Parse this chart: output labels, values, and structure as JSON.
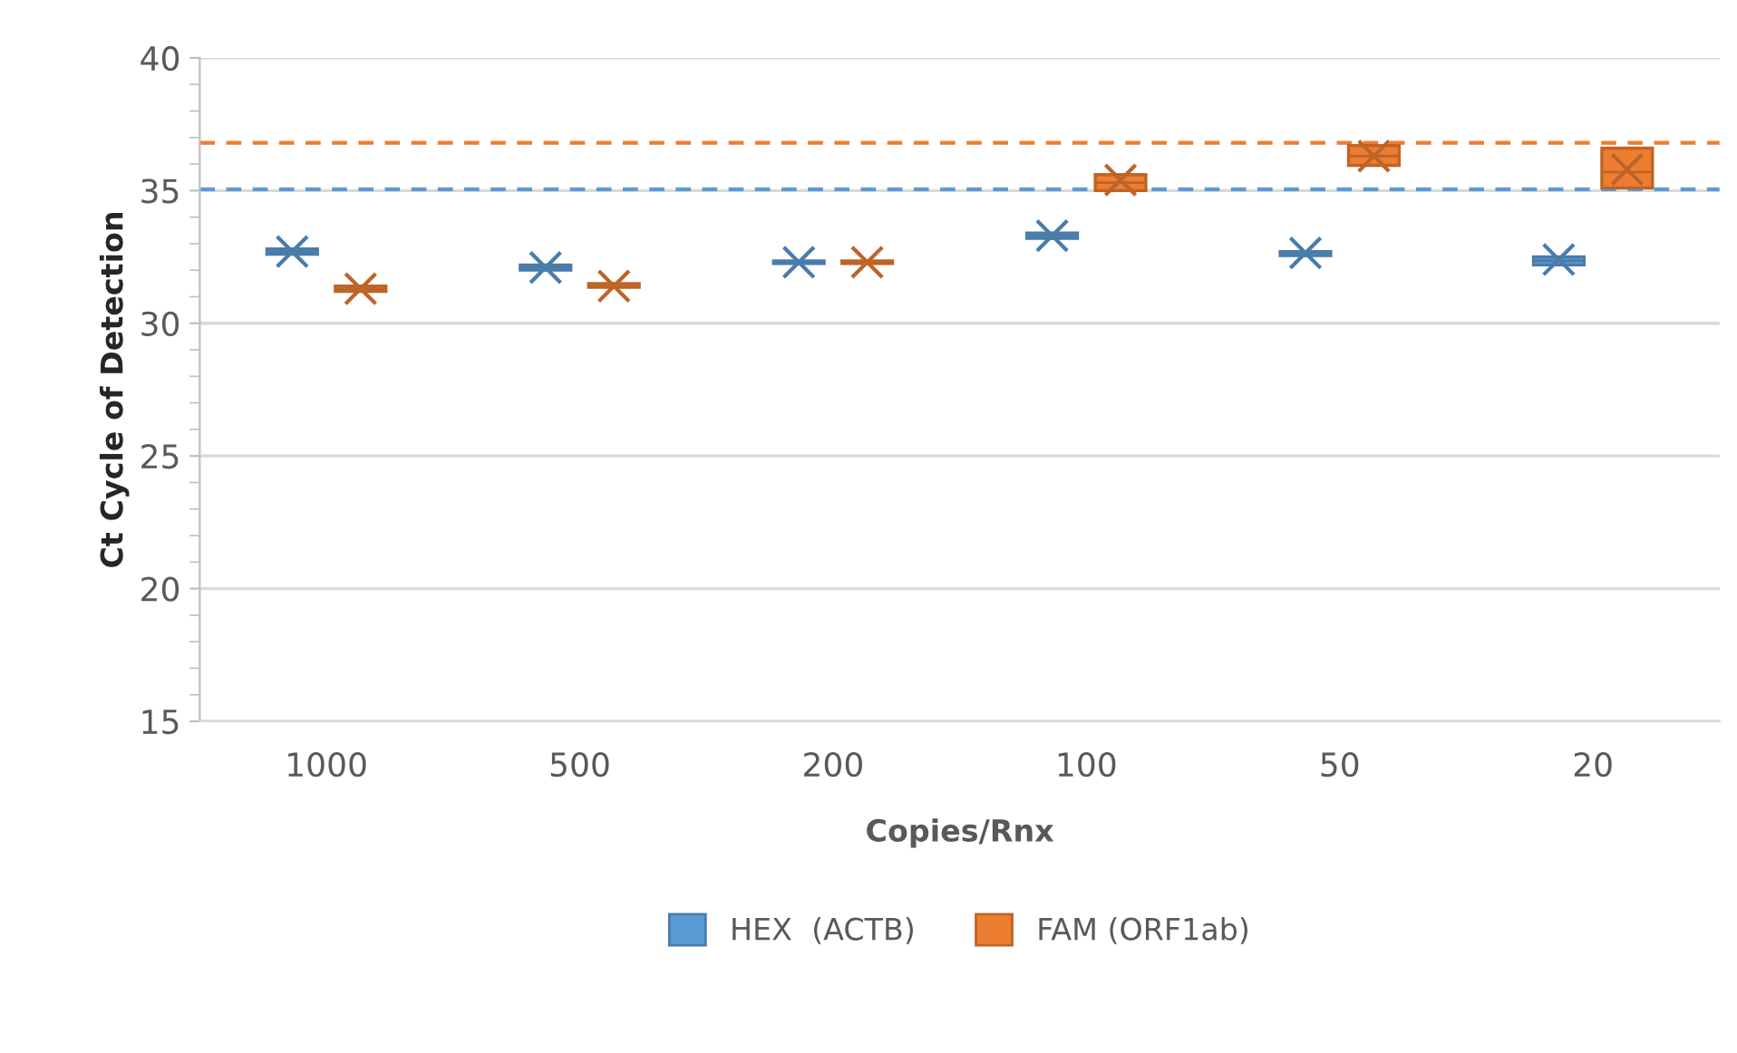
{
  "chart_data": {
    "type": "box",
    "xlabel": "Copies/Rnx",
    "ylabel": "Ct Cycle of Detection",
    "categories": [
      "1000",
      "500",
      "200",
      "100",
      "50",
      "20"
    ],
    "ylim": [
      15,
      40
    ],
    "yticks": [
      15,
      20,
      25,
      30,
      35,
      40
    ],
    "grid": "y",
    "legend": "bottom",
    "series": [
      {
        "name": "HEX  (ACTB)",
        "color": "#5b9bd5",
        "boxes": [
          {
            "low": 32.6,
            "q1": 32.6,
            "median": 32.7,
            "q3": 32.8,
            "high": 32.8,
            "mean": 32.7
          },
          {
            "low": 32.0,
            "q1": 32.0,
            "median": 32.1,
            "q3": 32.2,
            "high": 32.2,
            "mean": 32.1
          },
          {
            "low": 32.25,
            "q1": 32.25,
            "median": 32.3,
            "q3": 32.35,
            "high": 32.35,
            "mean": 32.3
          },
          {
            "low": 33.2,
            "q1": 33.2,
            "median": 33.3,
            "q3": 33.4,
            "high": 33.4,
            "mean": 33.3
          },
          {
            "low": 32.55,
            "q1": 32.55,
            "median": 32.65,
            "q3": 32.7,
            "high": 32.7,
            "mean": 32.65
          },
          {
            "low": 32.2,
            "q1": 32.2,
            "median": 32.35,
            "q3": 32.5,
            "high": 32.5,
            "mean": 32.4
          }
        ]
      },
      {
        "name": "FAM (ORF1ab)",
        "color": "#ed7d31",
        "boxes": [
          {
            "low": 31.2,
            "q1": 31.2,
            "median": 31.3,
            "q3": 31.4,
            "high": 31.4,
            "mean": 31.3
          },
          {
            "low": 31.35,
            "q1": 31.35,
            "median": 31.4,
            "q3": 31.5,
            "high": 31.5,
            "mean": 31.4
          },
          {
            "low": 32.25,
            "q1": 32.25,
            "median": 32.3,
            "q3": 32.35,
            "high": 32.35,
            "mean": 32.3
          },
          {
            "low": 35.0,
            "q1": 35.0,
            "median": 35.3,
            "q3": 35.6,
            "high": 35.6,
            "mean": 35.4
          },
          {
            "low": 35.95,
            "q1": 35.95,
            "median": 36.3,
            "q3": 36.7,
            "high": 36.7,
            "mean": 36.3
          },
          {
            "low": 35.1,
            "q1": 35.1,
            "median": 35.7,
            "q3": 36.6,
            "high": 36.6,
            "mean": 35.8
          }
        ]
      }
    ],
    "ref_lines": [
      {
        "axis": "y",
        "value": 36.8,
        "color": "#ed7d31",
        "line_style": "dashed"
      },
      {
        "axis": "y",
        "value": 35.05,
        "color": "#5b9bd5",
        "line_style": "dashed"
      }
    ]
  }
}
